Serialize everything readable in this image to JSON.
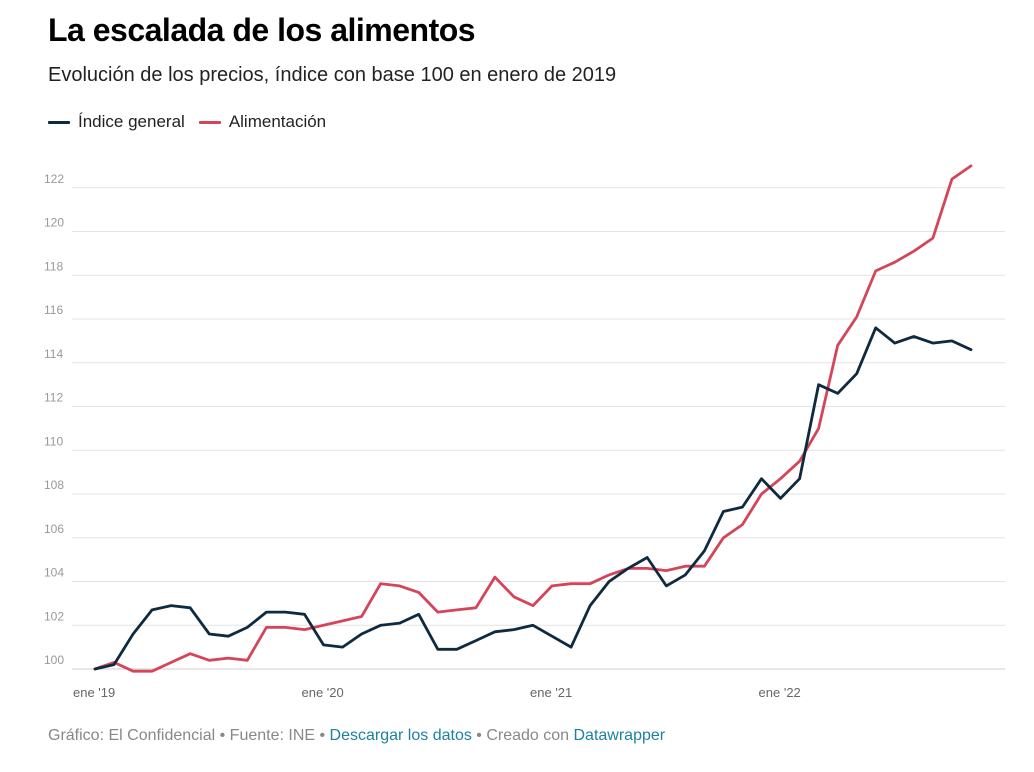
{
  "title": "La escalada de los alimentos",
  "subtitle": "Evolución de los precios, índice con base 100 en enero de 2019",
  "footer": {
    "credit": "Gráfico: El Confidencial • Fuente: INE • ",
    "download": "Descargar los datos",
    "created": " • Creado con ",
    "tool": "Datawrapper"
  },
  "colors": {
    "general": "#0f2a3f",
    "food": "#d5455a",
    "grid": "#e3e3e3"
  },
  "chart_data": {
    "type": "line",
    "title": "La escalada de los alimentos",
    "subtitle": "Evolución de los precios, índice con base 100 en enero de 2019",
    "xlabel": "",
    "ylabel": "",
    "ylim": [
      100,
      123.5
    ],
    "yticks": [
      100,
      102,
      104,
      106,
      108,
      110,
      112,
      114,
      116,
      118,
      120,
      122
    ],
    "xticks": [
      {
        "index": 0,
        "label": "ene '19"
      },
      {
        "index": 12,
        "label": "ene '20"
      },
      {
        "index": 24,
        "label": "ene '21"
      },
      {
        "index": 36,
        "label": "ene '22"
      }
    ],
    "grid": true,
    "legend_position": "top-left",
    "x_count": 48,
    "series": [
      {
        "name": "Índice general",
        "color": "#0f2a3f",
        "values": [
          100,
          100.2,
          101.6,
          102.7,
          102.9,
          102.8,
          101.6,
          101.5,
          101.9,
          102.6,
          102.6,
          102.5,
          101.1,
          101.0,
          101.6,
          102.0,
          102.1,
          102.5,
          100.9,
          100.9,
          101.3,
          101.7,
          101.8,
          102.0,
          101.5,
          101.0,
          102.9,
          104.0,
          104.6,
          105.1,
          103.8,
          104.3,
          105.4,
          107.2,
          107.4,
          108.7,
          107.8,
          108.7,
          113.0,
          112.6,
          113.5,
          115.6,
          114.9,
          115.2,
          114.9,
          115.0,
          114.6
        ]
      },
      {
        "name": "Alimentación",
        "color": "#d5455a",
        "values": [
          100,
          100.3,
          99.9,
          99.9,
          100.3,
          100.7,
          100.4,
          100.5,
          100.4,
          101.9,
          101.9,
          101.8,
          102.0,
          102.2,
          102.4,
          103.9,
          103.8,
          103.5,
          102.6,
          102.7,
          102.8,
          104.2,
          103.3,
          102.9,
          103.8,
          103.9,
          103.9,
          104.3,
          104.6,
          104.6,
          104.5,
          104.7,
          104.7,
          106.0,
          106.6,
          108.0,
          108.7,
          109.5,
          111.0,
          114.8,
          116.1,
          118.2,
          118.6,
          119.1,
          119.7,
          122.4,
          123.0
        ]
      }
    ]
  }
}
